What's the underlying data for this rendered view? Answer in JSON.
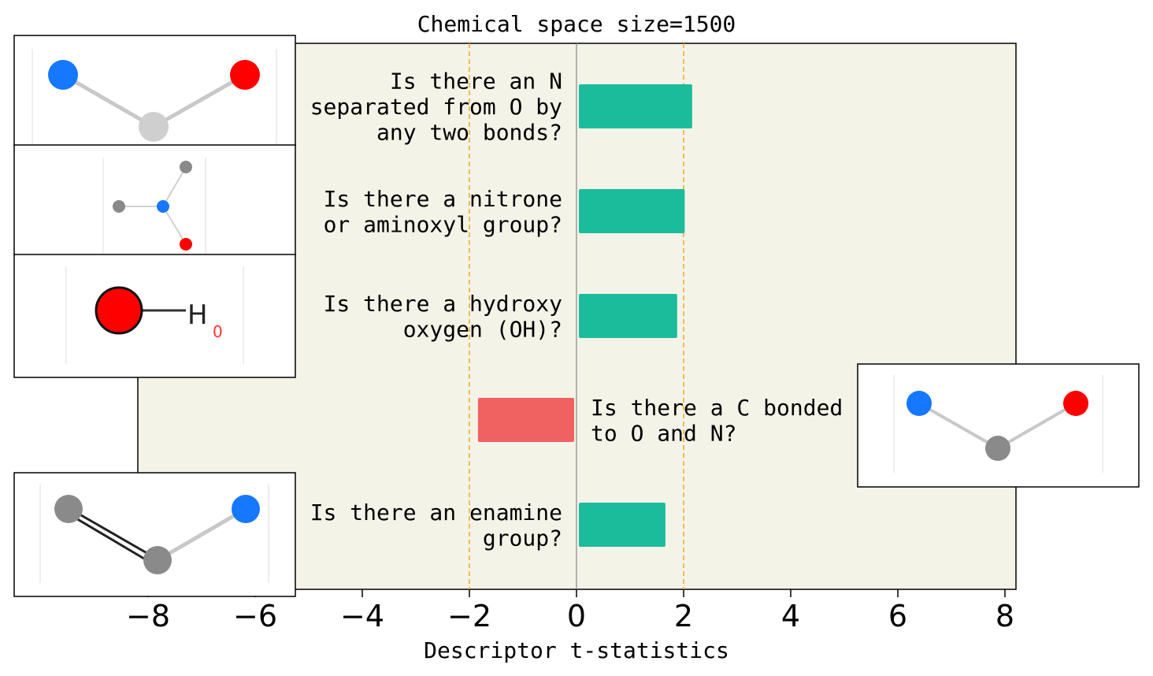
{
  "chart_data": {
    "type": "bar",
    "orientation": "horizontal",
    "title": "Chemical space size=1500",
    "xlabel": "Descriptor t-statistics",
    "ylabel": "",
    "xlim": [
      -8.2,
      8.2
    ],
    "xticks": [
      -8,
      -6,
      -4,
      -2,
      0,
      2,
      4,
      6,
      8
    ],
    "xtick_labels": [
      "−8",
      "−6",
      "−4",
      "−2",
      "0",
      "2",
      "4",
      "6",
      "8"
    ],
    "significance_lines": [
      -2,
      2
    ],
    "categories": [
      [
        "Is there an N",
        "separated from O by",
        "any two bonds?"
      ],
      [
        "Is there a nitrone",
        "or aminoxyl group?"
      ],
      [
        "Is there a hydroxy",
        "oxygen (OH)?"
      ],
      [
        "Is there a C bonded",
        "to O and N?"
      ],
      [
        "Is there an enamine",
        "group?"
      ]
    ],
    "values": [
      2.16,
      2.02,
      1.88,
      -1.84,
      1.66
    ],
    "grid": false,
    "colors": {
      "positive": "#1abc9c",
      "negative": "#f06262",
      "background": "#f3f3e8",
      "significance_line": "#f5a623",
      "zero_line": "#888888"
    }
  },
  "molecule_images": [
    {
      "name": "n-o-two-bonds-molecule",
      "atoms": [
        "N",
        "C",
        "O"
      ]
    },
    {
      "name": "nitrone-molecule",
      "atoms": [
        "C",
        "C",
        "N",
        "O"
      ]
    },
    {
      "name": "hydroxy-molecule",
      "atoms": [
        "O",
        "H"
      ],
      "label": "H",
      "sublabel": "0"
    },
    {
      "name": "enamine-molecule",
      "atoms": [
        "C",
        "C",
        "N"
      ]
    },
    {
      "name": "c-bonded-o-n-molecule",
      "atoms": [
        "N",
        "C",
        "O"
      ]
    }
  ]
}
